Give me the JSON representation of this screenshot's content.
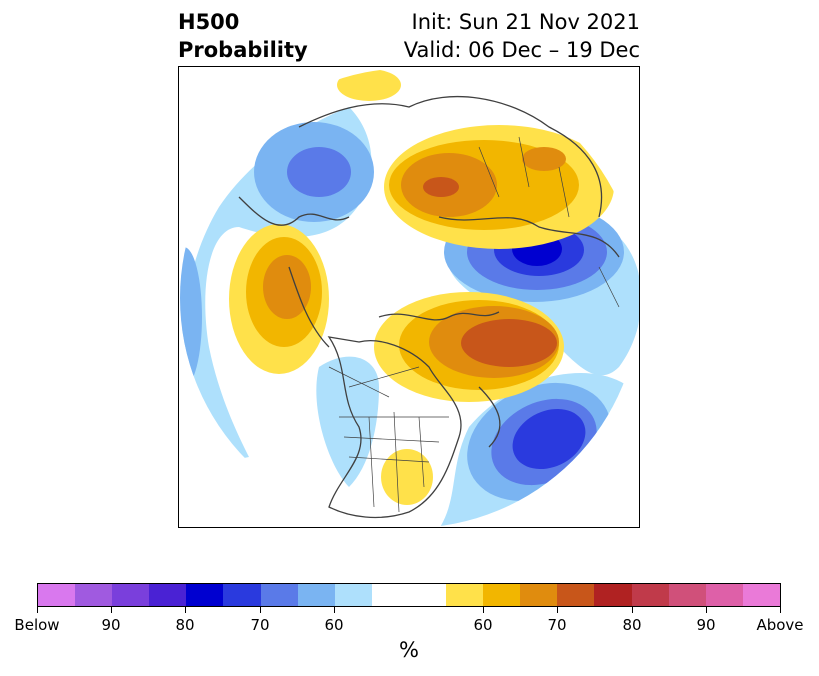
{
  "title": {
    "left_line1": "H500",
    "left_line2": "Probability",
    "right_line1": "Init: Sun 21 Nov 2021",
    "right_line2": "Valid: 06 Dec – 19 Dec"
  },
  "colorbar": {
    "colors": [
      "#d978ee",
      "#a05ae0",
      "#7a3fdc",
      "#4a22d4",
      "#0000d0",
      "#2a3ade",
      "#5a7ae8",
      "#7ab4f2",
      "#aee0fc",
      "#ffffff",
      "#ffffff",
      "#ffe14a",
      "#f2b600",
      "#e08c0e",
      "#c8561a",
      "#b02222",
      "#c03a4a",
      "#d0507a",
      "#de60a8",
      "#ea7ad8"
    ],
    "tick_labels": [
      "Below",
      "90",
      "80",
      "70",
      "60",
      "60",
      "70",
      "80",
      "90",
      "Above"
    ],
    "unit_label": "%"
  },
  "colors": {
    "light_blue": "#aee0fc",
    "blue_mid": "#7ab4f2",
    "blue": "#5a7ae8",
    "blue_strong": "#2a3ade",
    "blue_deep": "#0000d0",
    "yellow": "#ffe14a",
    "gold": "#f2b600",
    "orange": "#e08c0e",
    "rust": "#c8561a",
    "coastline": "#404040"
  }
}
